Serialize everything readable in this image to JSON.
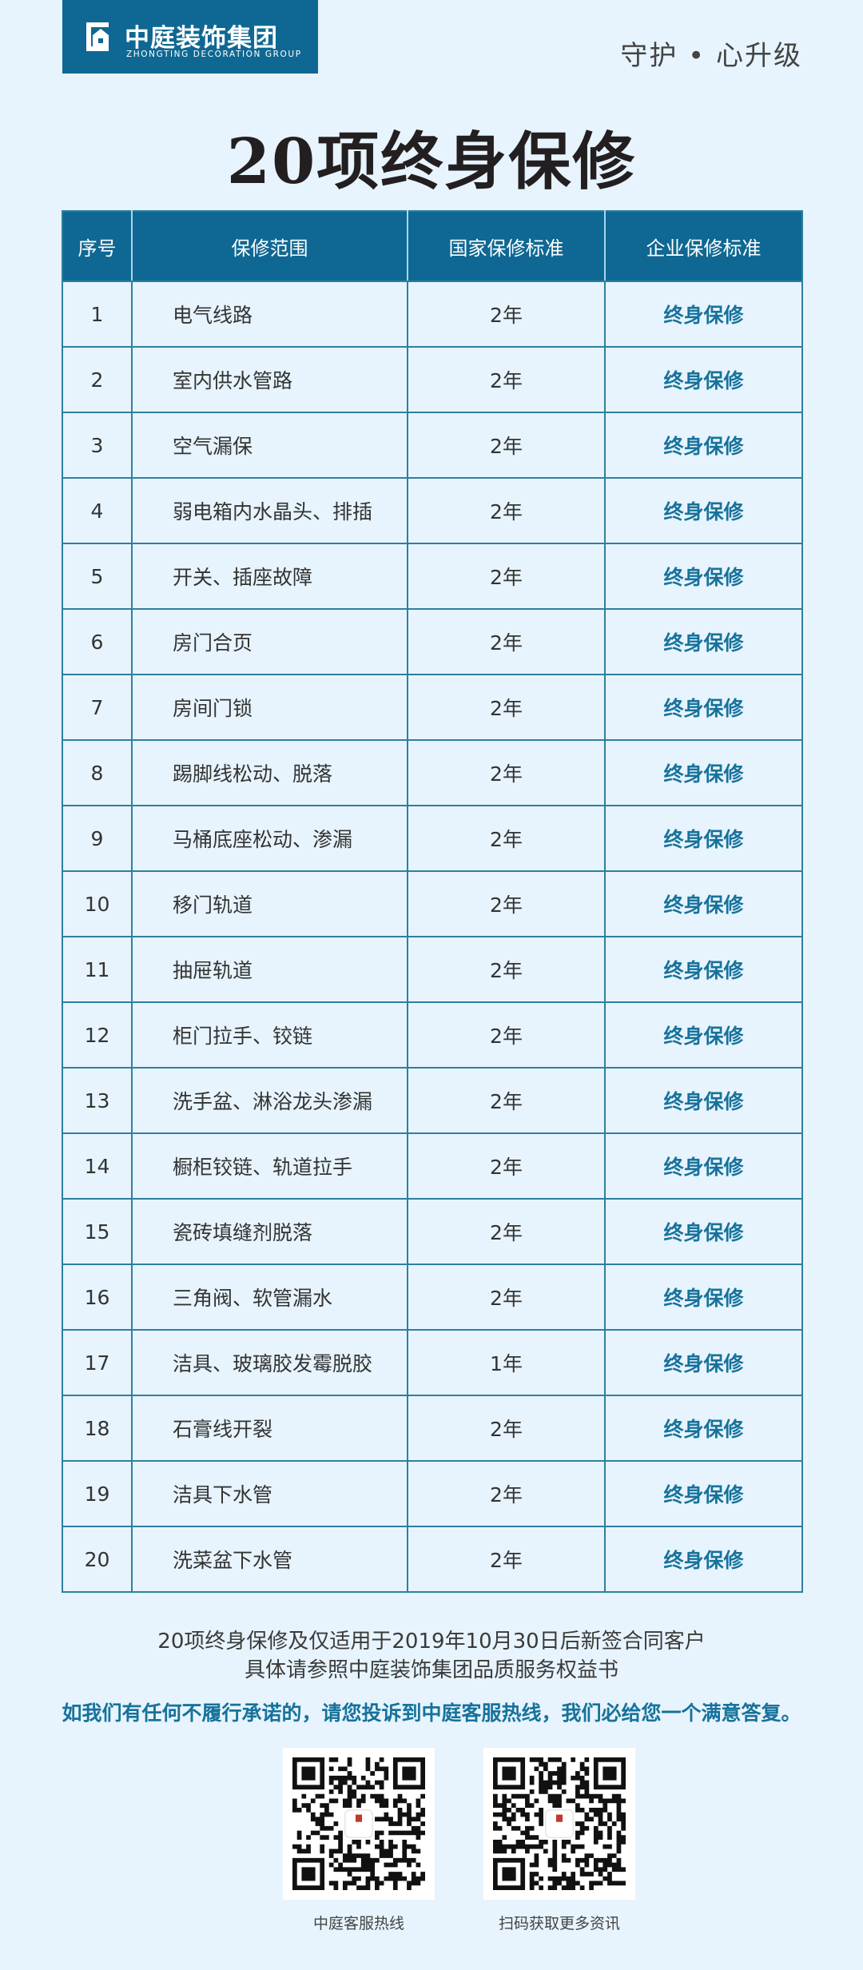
{
  "header": {
    "logo_cn": "中庭装饰集团",
    "logo_en": "ZHONGTING DECORATION GROUP",
    "tagline": "守护 • 心升级",
    "brand_color": "#0f6893"
  },
  "title": "20项终身保修",
  "table": {
    "columns": [
      "序号",
      "保修范围",
      "国家保修标准",
      "企业保修标准"
    ],
    "rows": [
      {
        "no": "1",
        "scope": "电气线路",
        "national": "2年",
        "enterprise": "终身保修"
      },
      {
        "no": "2",
        "scope": "室内供水管路",
        "national": "2年",
        "enterprise": "终身保修"
      },
      {
        "no": "3",
        "scope": "空气漏保",
        "national": "2年",
        "enterprise": "终身保修"
      },
      {
        "no": "4",
        "scope": "弱电箱内水晶头、排插",
        "national": "2年",
        "enterprise": "终身保修"
      },
      {
        "no": "5",
        "scope": "开关、插座故障",
        "national": "2年",
        "enterprise": "终身保修"
      },
      {
        "no": "6",
        "scope": "房门合页",
        "national": "2年",
        "enterprise": "终身保修"
      },
      {
        "no": "7",
        "scope": "房间门锁",
        "national": "2年",
        "enterprise": "终身保修"
      },
      {
        "no": "8",
        "scope": "踢脚线松动、脱落",
        "national": "2年",
        "enterprise": "终身保修"
      },
      {
        "no": "9",
        "scope": "马桶底座松动、渗漏",
        "national": "2年",
        "enterprise": "终身保修"
      },
      {
        "no": "10",
        "scope": "移门轨道",
        "national": "2年",
        "enterprise": "终身保修"
      },
      {
        "no": "11",
        "scope": "抽屉轨道",
        "national": "2年",
        "enterprise": "终身保修"
      },
      {
        "no": "12",
        "scope": "柜门拉手、铰链",
        "national": "2年",
        "enterprise": "终身保修"
      },
      {
        "no": "13",
        "scope": "洗手盆、淋浴龙头渗漏",
        "national": "2年",
        "enterprise": "终身保修"
      },
      {
        "no": "14",
        "scope": "橱柜铰链、轨道拉手",
        "national": "2年",
        "enterprise": "终身保修"
      },
      {
        "no": "15",
        "scope": "瓷砖填缝剂脱落",
        "national": "2年",
        "enterprise": "终身保修"
      },
      {
        "no": "16",
        "scope": "三角阀、软管漏水",
        "national": "2年",
        "enterprise": "终身保修"
      },
      {
        "no": "17",
        "scope": "洁具、玻璃胶发霉脱胶",
        "national": "1年",
        "enterprise": "终身保修"
      },
      {
        "no": "18",
        "scope": "石膏线开裂",
        "national": "2年",
        "enterprise": "终身保修"
      },
      {
        "no": "19",
        "scope": "洁具下水管",
        "national": "2年",
        "enterprise": "终身保修"
      },
      {
        "no": "20",
        "scope": "洗菜盆下水管",
        "national": "2年",
        "enterprise": "终身保修"
      }
    ]
  },
  "footer": {
    "note_line1": "20项终身保修及仅适用于2019年10月30日后新签合同客户",
    "note_line2": "具体请参照中庭装饰集团品质服务权益书",
    "promise": "如我们有任何不履行承诺的，请您投诉到中庭客服热线，我们必给您一个满意答复。",
    "qr_codes": [
      {
        "label": "中庭客服热线"
      },
      {
        "label": "扫码获取更多资讯"
      }
    ]
  }
}
